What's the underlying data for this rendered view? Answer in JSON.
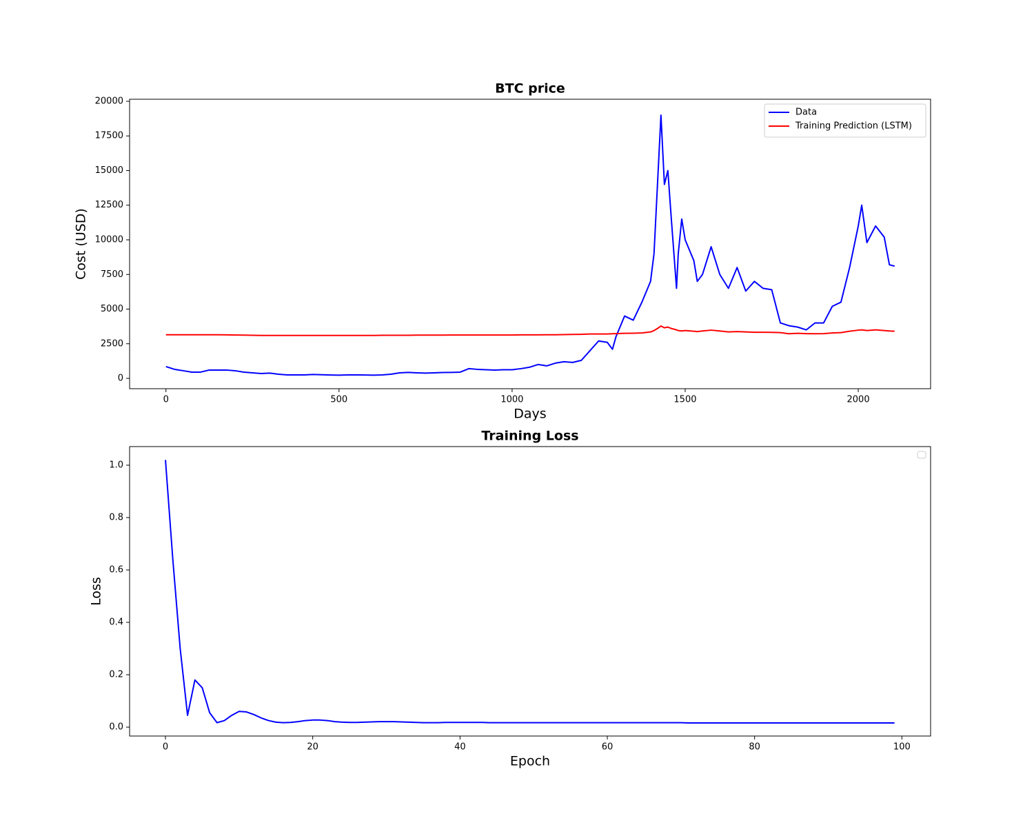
{
  "chart_data": [
    {
      "type": "line",
      "title": "BTC price",
      "xlabel": "Days",
      "ylabel": "Cost (USD)",
      "x": [
        0,
        25,
        50,
        75,
        100,
        125,
        150,
        175,
        200,
        225,
        250,
        275,
        300,
        325,
        350,
        375,
        400,
        425,
        450,
        475,
        500,
        525,
        550,
        575,
        600,
        625,
        650,
        675,
        700,
        725,
        750,
        775,
        800,
        825,
        850,
        875,
        900,
        925,
        950,
        975,
        1000,
        1025,
        1050,
        1075,
        1100,
        1125,
        1150,
        1175,
        1200,
        1225,
        1250,
        1275,
        1290,
        1300,
        1325,
        1350,
        1375,
        1400,
        1410,
        1420,
        1430,
        1440,
        1450,
        1460,
        1475,
        1480,
        1490,
        1500,
        1525,
        1535,
        1550,
        1575,
        1600,
        1625,
        1650,
        1675,
        1700,
        1725,
        1750,
        1775,
        1800,
        1825,
        1850,
        1875,
        1900,
        1925,
        1950,
        1975,
        2000,
        2010,
        2025,
        2050,
        2075,
        2090,
        2105
      ],
      "series": [
        {
          "name": "Data",
          "color": "#0000ff",
          "values": [
            850,
            650,
            550,
            450,
            450,
            600,
            600,
            600,
            550,
            450,
            400,
            350,
            380,
            300,
            250,
            250,
            250,
            280,
            260,
            240,
            230,
            250,
            250,
            240,
            230,
            250,
            300,
            400,
            430,
            400,
            380,
            400,
            420,
            430,
            450,
            700,
            650,
            620,
            600,
            620,
            620,
            700,
            800,
            1000,
            900,
            1100,
            1200,
            1150,
            1300,
            2000,
            2700,
            2600,
            2100,
            3000,
            4500,
            4200,
            5500,
            7000,
            9000,
            14000,
            19000,
            14000,
            15000,
            11500,
            6500,
            9000,
            11500,
            10000,
            8500,
            7000,
            7500,
            9500,
            7500,
            6500,
            8000,
            6300,
            7000,
            6500,
            6400,
            4000,
            3800,
            3700,
            3500,
            4000,
            4000,
            5200,
            5500,
            8000,
            11000,
            12500,
            9800,
            11000,
            10200,
            8200,
            8100
          ]
        },
        {
          "name": "Training Prediction (LSTM)",
          "color": "#ff0000",
          "values": [
            3150,
            3150,
            3150,
            3150,
            3150,
            3150,
            3150,
            3140,
            3130,
            3120,
            3110,
            3100,
            3100,
            3100,
            3100,
            3100,
            3100,
            3100,
            3100,
            3100,
            3100,
            3100,
            3100,
            3100,
            3100,
            3110,
            3110,
            3110,
            3110,
            3120,
            3120,
            3120,
            3120,
            3130,
            3130,
            3130,
            3130,
            3130,
            3130,
            3130,
            3130,
            3140,
            3140,
            3140,
            3150,
            3150,
            3160,
            3170,
            3180,
            3200,
            3200,
            3200,
            3220,
            3230,
            3250,
            3260,
            3280,
            3350,
            3450,
            3600,
            3780,
            3650,
            3700,
            3600,
            3500,
            3450,
            3420,
            3450,
            3400,
            3380,
            3420,
            3480,
            3420,
            3350,
            3380,
            3350,
            3330,
            3330,
            3320,
            3300,
            3220,
            3250,
            3230,
            3220,
            3230,
            3280,
            3300,
            3400,
            3480,
            3500,
            3450,
            3500,
            3450,
            3420,
            3400
          ]
        }
      ],
      "xlim": [
        -105,
        2209
      ],
      "ylim": [
        -746,
        20149
      ],
      "xticks": [
        0,
        500,
        1000,
        1500,
        2000
      ],
      "yticks": [
        0,
        2500,
        5000,
        7500,
        10000,
        12500,
        15000,
        17500,
        20000
      ],
      "grid": false,
      "legend": "upper right"
    },
    {
      "type": "line",
      "title": "Training Loss",
      "xlabel": "Epoch",
      "ylabel": "Loss",
      "x": [
        0,
        1,
        2,
        3,
        4,
        5,
        6,
        7,
        8,
        9,
        10,
        11,
        12,
        13,
        14,
        15,
        16,
        17,
        18,
        19,
        20,
        21,
        22,
        23,
        24,
        25,
        26,
        27,
        28,
        29,
        30,
        31,
        32,
        33,
        34,
        35,
        36,
        37,
        38,
        39,
        40,
        41,
        42,
        43,
        44,
        45,
        46,
        47,
        48,
        49,
        50,
        51,
        52,
        53,
        54,
        55,
        56,
        57,
        58,
        59,
        60,
        61,
        62,
        63,
        64,
        65,
        66,
        67,
        68,
        69,
        70,
        71,
        72,
        73,
        74,
        75,
        76,
        77,
        78,
        79,
        80,
        81,
        82,
        83,
        84,
        85,
        86,
        87,
        88,
        89,
        90,
        91,
        92,
        93,
        94,
        95,
        96,
        97,
        98,
        99
      ],
      "series": [
        {
          "color": "#0000ff",
          "values": [
            1.02,
            0.64,
            0.3,
            0.045,
            0.18,
            0.15,
            0.055,
            0.017,
            0.025,
            0.045,
            0.06,
            0.058,
            0.048,
            0.035,
            0.025,
            0.019,
            0.017,
            0.018,
            0.021,
            0.025,
            0.027,
            0.027,
            0.025,
            0.021,
            0.019,
            0.018,
            0.018,
            0.019,
            0.02,
            0.021,
            0.021,
            0.021,
            0.02,
            0.019,
            0.018,
            0.017,
            0.017,
            0.017,
            0.018,
            0.018,
            0.018,
            0.018,
            0.018,
            0.018,
            0.017,
            0.017,
            0.017,
            0.017,
            0.017,
            0.017,
            0.017,
            0.017,
            0.017,
            0.017,
            0.017,
            0.017,
            0.017,
            0.017,
            0.017,
            0.017,
            0.017,
            0.017,
            0.017,
            0.017,
            0.017,
            0.017,
            0.017,
            0.017,
            0.017,
            0.017,
            0.017,
            0.016,
            0.016,
            0.016,
            0.016,
            0.016,
            0.016,
            0.016,
            0.016,
            0.016,
            0.016,
            0.016,
            0.016,
            0.016,
            0.016,
            0.016,
            0.016,
            0.016,
            0.016,
            0.016,
            0.016,
            0.016,
            0.016,
            0.016,
            0.016,
            0.016,
            0.016,
            0.016,
            0.016,
            0.016
          ]
        }
      ],
      "xlim": [
        -4.87,
        103.9
      ],
      "ylim": [
        -0.034,
        1.071
      ],
      "xticks": [
        0,
        20,
        40,
        60,
        80,
        100
      ],
      "yticks": [
        {
          "value": 0,
          "label": "0.0"
        },
        0.2,
        0.4,
        0.6,
        0.8,
        {
          "value": 1,
          "label": "1.0"
        }
      ],
      "grid": false,
      "legend": "upper right"
    }
  ]
}
